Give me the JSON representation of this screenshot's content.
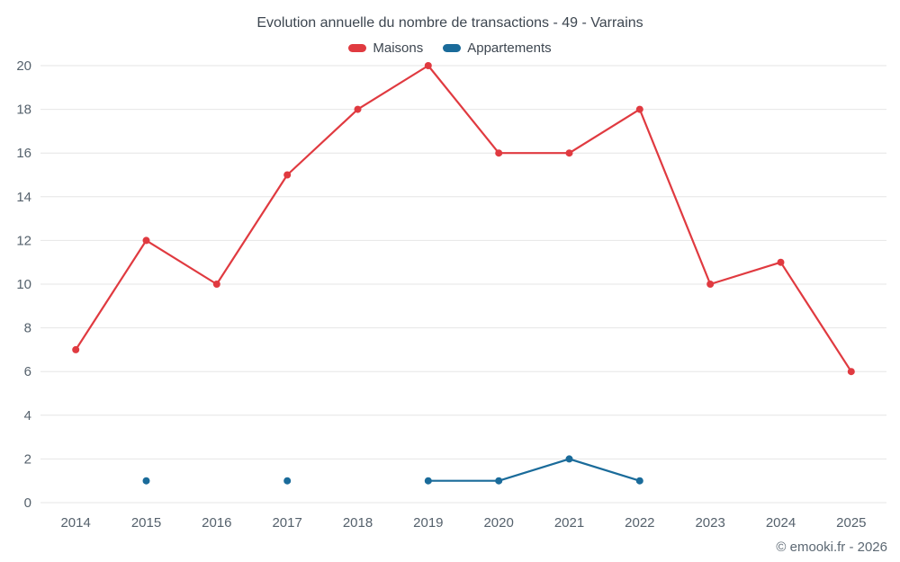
{
  "chart": {
    "title": "Evolution annuelle du nombre de transactions - 49 - Varrains",
    "credits": "© emooki.fr - 2026"
  },
  "chart_data": {
    "type": "line",
    "title": "Evolution annuelle du nombre de transactions - 49 - Varrains",
    "categories": [
      "2014",
      "2015",
      "2016",
      "2017",
      "2018",
      "2019",
      "2020",
      "2021",
      "2022",
      "2023",
      "2024",
      "2025"
    ],
    "series": [
      {
        "name": "Maisons",
        "color": "#e03a40",
        "values": [
          7,
          12,
          10,
          15,
          18,
          20,
          16,
          16,
          18,
          10,
          11,
          6
        ]
      },
      {
        "name": "Appartements",
        "color": "#1a6b9a",
        "values": [
          null,
          1,
          null,
          1,
          null,
          1,
          1,
          2,
          1,
          null,
          null,
          null
        ]
      }
    ],
    "xlabel": "",
    "ylabel": "",
    "ylim": [
      0,
      20
    ],
    "ytick_step": 2,
    "grid": true,
    "grid_color": "#e6e6e6",
    "legend_position": "top"
  }
}
